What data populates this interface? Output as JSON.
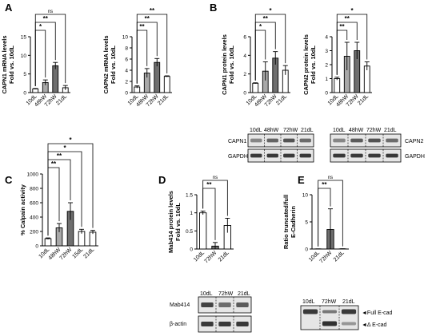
{
  "panels": {
    "A": "A",
    "B": "B",
    "C": "C",
    "D": "D",
    "E": "E"
  },
  "colors": {
    "white": "#ffffff",
    "light_gray": "#a9a9a9",
    "dark_gray": "#6f6f6f",
    "axis": "#000000"
  },
  "chart_data": [
    {
      "id": "capn1_mrna",
      "type": "bar",
      "categories": [
        "10dL",
        "48hW",
        "72hW",
        "21dL"
      ],
      "values": [
        1.0,
        2.7,
        7.2,
        1.3
      ],
      "errors": [
        0.1,
        0.7,
        0.9,
        0.6
      ],
      "bar_colors": [
        "#ffffff",
        "#a9a9a9",
        "#6f6f6f",
        "#ffffff"
      ],
      "ylabel": "CAPN1 mRNA levels\nFold vs. 10dL",
      "ylim": [
        0,
        15
      ],
      "yticks": [
        0,
        5,
        10,
        15
      ],
      "significance": [
        {
          "from": 0,
          "to": 1,
          "label": "*"
        },
        {
          "from": 0,
          "to": 2,
          "label": "**"
        },
        {
          "from": 0,
          "to": 3,
          "label": "ns"
        }
      ]
    },
    {
      "id": "capn2_mrna",
      "type": "bar",
      "categories": [
        "10dL",
        "48hW",
        "72hW",
        "21dL"
      ],
      "values": [
        1.0,
        3.5,
        5.4,
        2.9
      ],
      "errors": [
        0.2,
        0.8,
        0.7,
        0.1
      ],
      "bar_colors": [
        "#ffffff",
        "#a9a9a9",
        "#6f6f6f",
        "#ffffff"
      ],
      "ylabel": "CAPN2 mRNA levels\nFold vs. 10dL",
      "ylim": [
        0,
        10
      ],
      "yticks": [
        0,
        2,
        4,
        6,
        8,
        10
      ],
      "significance": [
        {
          "from": 0,
          "to": 1,
          "label": "**"
        },
        {
          "from": 0,
          "to": 2,
          "label": "**"
        },
        {
          "from": 0,
          "to": 3,
          "label": "**"
        }
      ]
    },
    {
      "id": "capn1_protein",
      "type": "bar",
      "categories": [
        "10dL",
        "48hW",
        "72hW",
        "21dL"
      ],
      "values": [
        1.0,
        2.3,
        3.7,
        2.4
      ],
      "errors": [
        0.05,
        1.0,
        0.7,
        0.5
      ],
      "bar_colors": [
        "#ffffff",
        "#a9a9a9",
        "#6f6f6f",
        "#ffffff"
      ],
      "ylabel": "CAPN1 protein levels\nFold vs. 10dL",
      "ylim": [
        0,
        6
      ],
      "yticks": [
        0,
        2,
        4,
        6
      ],
      "significance": [
        {
          "from": 0,
          "to": 1,
          "label": "*"
        },
        {
          "from": 0,
          "to": 2,
          "label": "**"
        },
        {
          "from": 0,
          "to": 3,
          "label": "*"
        }
      ]
    },
    {
      "id": "capn2_protein",
      "type": "bar",
      "categories": [
        "10dL",
        "48hW",
        "72hW",
        "21dL"
      ],
      "values": [
        1.0,
        2.6,
        3.0,
        1.9
      ],
      "errors": [
        0.1,
        1.0,
        0.6,
        0.3
      ],
      "bar_colors": [
        "#ffffff",
        "#a9a9a9",
        "#6f6f6f",
        "#ffffff"
      ],
      "ylabel": "CAPN2 protein levels\nFold vs. 10dL",
      "ylim": [
        0,
        4
      ],
      "yticks": [
        0,
        1,
        2,
        3,
        4
      ],
      "significance": [
        {
          "from": 0,
          "to": 1,
          "label": "**"
        },
        {
          "from": 0,
          "to": 2,
          "label": "**"
        },
        {
          "from": 0,
          "to": 3,
          "label": "*"
        }
      ]
    },
    {
      "id": "calpain_activity",
      "type": "bar",
      "categories": [
        "10dL",
        "48hW",
        "72hW",
        "15dL",
        "21dL"
      ],
      "values": [
        100,
        250,
        480,
        200,
        190
      ],
      "errors": [
        10,
        60,
        120,
        30,
        25
      ],
      "bar_colors": [
        "#ffffff",
        "#a9a9a9",
        "#6f6f6f",
        "#ffffff",
        "#ffffff"
      ],
      "ylabel": "% Calpain activity",
      "ylim": [
        0,
        1000
      ],
      "yticks": [
        0,
        200,
        400,
        600,
        800,
        1000
      ],
      "significance": [
        {
          "from": 0,
          "to": 1,
          "label": "**"
        },
        {
          "from": 0,
          "to": 2,
          "label": "**"
        },
        {
          "from": 0,
          "to": 3,
          "label": "*"
        },
        {
          "from": 0,
          "to": 4,
          "label": "*"
        }
      ]
    },
    {
      "id": "mab414_protein",
      "type": "bar",
      "categories": [
        "10dL",
        "72hW",
        "21dL"
      ],
      "values": [
        1.0,
        0.08,
        0.65
      ],
      "errors": [
        0.05,
        0.1,
        0.2
      ],
      "bar_colors": [
        "#ffffff",
        "#6f6f6f",
        "#ffffff"
      ],
      "ylabel": "Mab414 protein levels\nFold vs. 10dL",
      "ylim": [
        0,
        1.5
      ],
      "yticks": [
        0.0,
        0.5,
        1.0,
        1.5
      ],
      "significance": [
        {
          "from": 0,
          "to": 1,
          "label": "**"
        },
        {
          "from": 0,
          "to": 2,
          "label": "ns"
        }
      ]
    },
    {
      "id": "ecad_ratio",
      "type": "bar",
      "categories": [
        "10dL",
        "72hW",
        "21dL"
      ],
      "values": [
        0.02,
        3.6,
        0.03
      ],
      "errors": [
        0.01,
        3.8,
        0.02
      ],
      "bar_colors": [
        "#ffffff",
        "#6f6f6f",
        "#ffffff"
      ],
      "ylabel": "Ratio truncated/full\nE-Cadherin",
      "ylim": [
        0,
        10
      ],
      "yticks": [
        0,
        5,
        10
      ],
      "significance": [
        {
          "from": 0,
          "to": 1,
          "label": "**"
        },
        {
          "from": 0,
          "to": 2,
          "label": "ns"
        }
      ]
    }
  ],
  "blots": {
    "capn1": {
      "lanes": [
        "10dL",
        "48hW",
        "72hW",
        "21dL"
      ],
      "rows": [
        "CAPN1",
        "GAPDH"
      ]
    },
    "capn2": {
      "lanes": [
        "10dL",
        "48hW",
        "72hW",
        "21dL"
      ],
      "rows": [
        "CAPN2",
        "GAPDH"
      ]
    },
    "mab414": {
      "lanes": [
        "10dL",
        "72hW",
        "21dL"
      ],
      "rows": [
        "Mab414",
        "β-actin"
      ]
    },
    "ecad": {
      "lanes": [
        "10dL",
        "72hW",
        "21dL"
      ],
      "markers": [
        "◄Full E-cad",
        "◄Δ E-cad"
      ]
    }
  }
}
